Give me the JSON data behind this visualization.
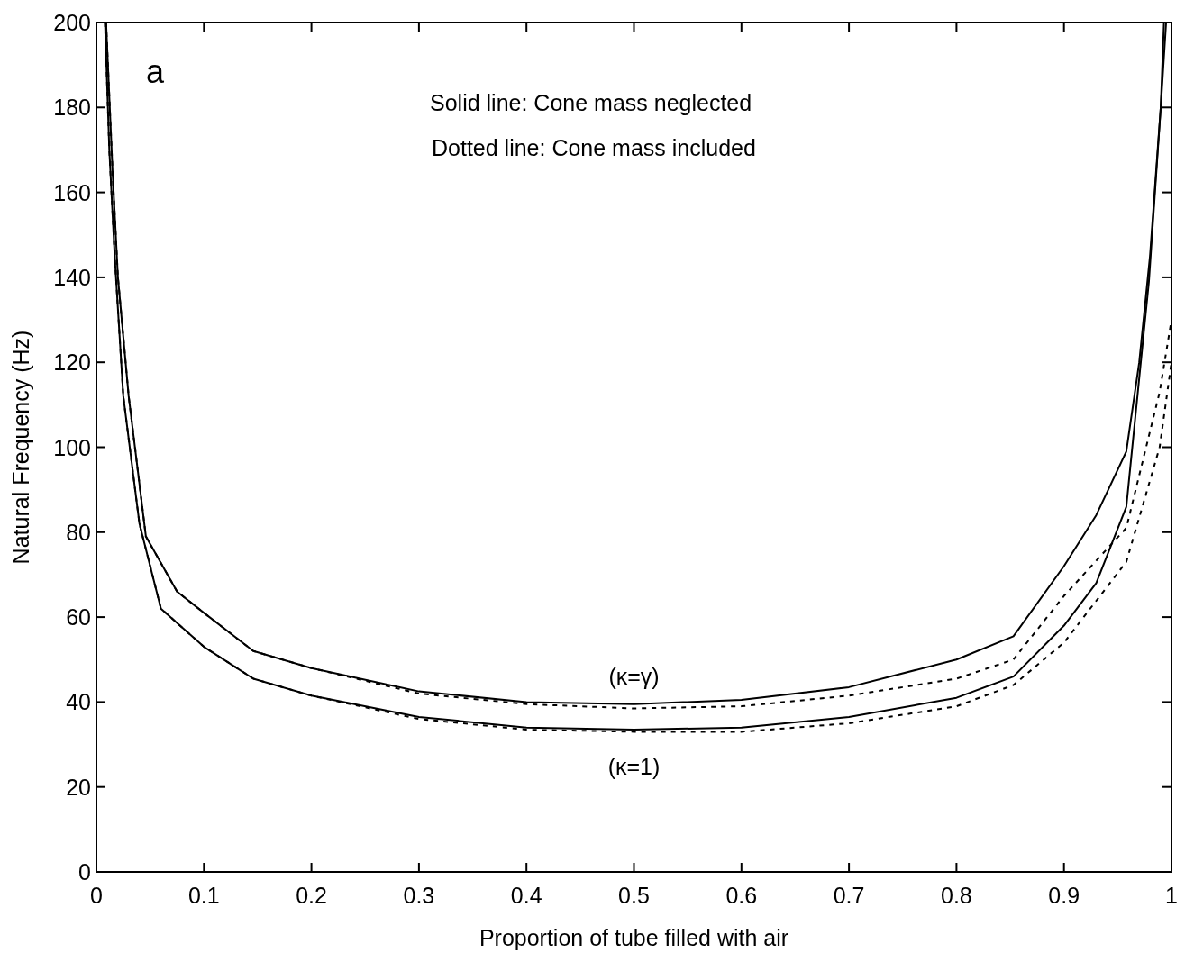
{
  "chart_data": {
    "type": "line",
    "xlabel": "Proportion of tube filled with air",
    "ylabel": "Natural Frequency (Hz)",
    "xlim": [
      0,
      1
    ],
    "ylim": [
      0,
      200
    ],
    "xticks": [
      0,
      0.1,
      0.2,
      0.3,
      0.4,
      0.5,
      0.6,
      0.7,
      0.8,
      0.9,
      1
    ],
    "yticks": [
      0,
      20,
      40,
      60,
      80,
      100,
      120,
      140,
      160,
      180,
      200
    ],
    "grid": false,
    "marker": "none",
    "annotations": [
      "a",
      "Solid line: Cone mass neglected",
      "Dotted line: Cone mass included",
      {
        "text": "(κ=γ)",
        "x": 0.5,
        "y": 39.5
      },
      {
        "text": "(κ=1)",
        "x": 0.5,
        "y": 33.5
      }
    ],
    "series": [
      {
        "color": "#000000",
        "line_style": "solid",
        "x": [
          0.009,
          0.015,
          0.02,
          0.03,
          0.046,
          0.075,
          0.1,
          0.146,
          0.2,
          0.3,
          0.4,
          0.5,
          0.6,
          0.7,
          0.8,
          0.853,
          0.9,
          0.93,
          0.958,
          0.97,
          0.98,
          0.99,
          0.995
        ],
        "values": [
          200,
          165,
          140,
          112,
          79,
          66,
          61,
          52,
          48,
          42.5,
          40,
          39.5,
          40.5,
          43.5,
          50,
          55.5,
          72,
          84,
          99,
          120,
          145,
          180,
          200
        ]
      },
      {
        "color": "#000000",
        "line_style": "dotted",
        "x": [
          0.009,
          0.015,
          0.02,
          0.03,
          0.046,
          0.075,
          0.1,
          0.146,
          0.2,
          0.3,
          0.4,
          0.5,
          0.6,
          0.7,
          0.8,
          0.853,
          0.9,
          0.958,
          0.989,
          1
        ],
        "values": [
          200,
          165,
          140,
          112,
          79,
          66,
          61,
          52,
          48,
          42,
          39.5,
          38.5,
          39,
          41.5,
          45.5,
          50,
          65,
          81,
          113,
          130
        ]
      },
      {
        "color": "#000000",
        "line_style": "solid",
        "x": [
          0.008,
          0.012,
          0.017,
          0.025,
          0.04,
          0.06,
          0.1,
          0.146,
          0.2,
          0.3,
          0.4,
          0.5,
          0.6,
          0.7,
          0.8,
          0.853,
          0.9,
          0.93,
          0.958,
          0.979,
          0.99,
          0.993
        ],
        "values": [
          200,
          170,
          145,
          112,
          82,
          62,
          53,
          45.5,
          41.5,
          36.5,
          34,
          33.5,
          34,
          36.5,
          41,
          46,
          58,
          68,
          86,
          139,
          180,
          200
        ]
      },
      {
        "color": "#000000",
        "line_style": "dotted",
        "x": [
          0.008,
          0.012,
          0.017,
          0.025,
          0.04,
          0.06,
          0.1,
          0.146,
          0.2,
          0.3,
          0.4,
          0.5,
          0.6,
          0.7,
          0.8,
          0.853,
          0.9,
          0.958,
          0.989,
          1
        ],
        "values": [
          200,
          170,
          145,
          112,
          82,
          62,
          53,
          45.5,
          41.5,
          36,
          33.5,
          33,
          33,
          35,
          39,
          44,
          54,
          73,
          100,
          120
        ]
      }
    ]
  }
}
